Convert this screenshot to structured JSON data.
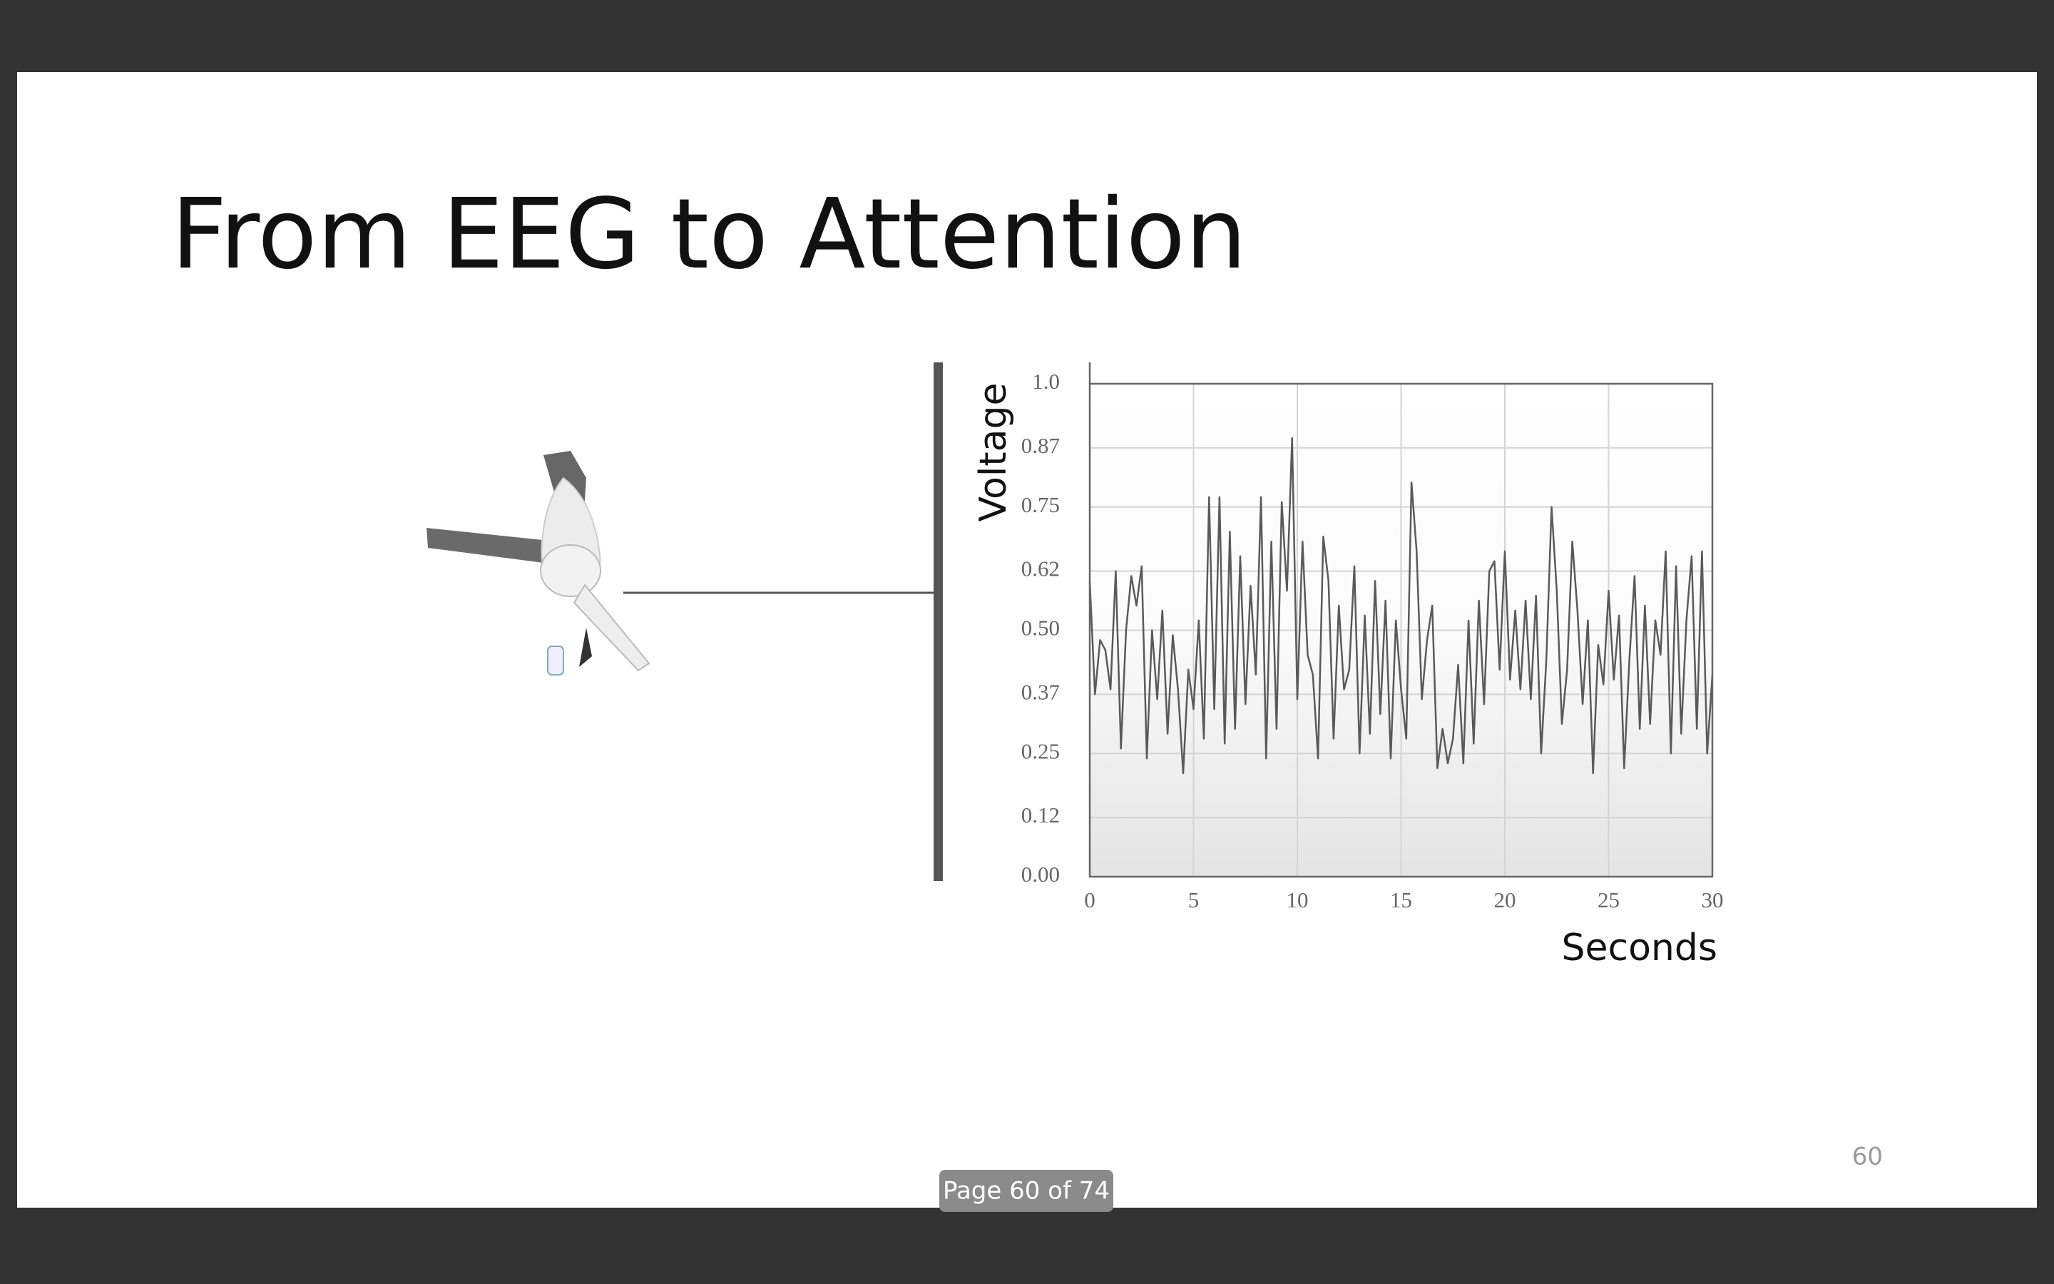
{
  "slide": {
    "title": "From EEG to Attention",
    "page_number": "60"
  },
  "viewer": {
    "page_indicator": "Page 60 of 74"
  },
  "chart_data": {
    "type": "line",
    "x_label": "Seconds",
    "y_label": "Voltage",
    "color": "#5a5a5a",
    "grid": true,
    "xlim": [
      0,
      30
    ],
    "ylim": [
      0,
      1
    ],
    "xticks": [
      0,
      5,
      10,
      15,
      20,
      25,
      30
    ],
    "yticks": [
      {
        "value": 0,
        "label": "0.00"
      },
      0.12,
      0.25,
      0.37,
      {
        "value": 0.5,
        "label": "0.50"
      },
      0.62,
      0.75,
      0.87,
      {
        "value": 1,
        "label": "1.0"
      }
    ],
    "x": [
      0,
      0.25,
      0.5,
      0.75,
      1,
      1.25,
      1.5,
      1.75,
      2,
      2.25,
      2.5,
      2.75,
      3,
      3.25,
      3.5,
      3.75,
      4,
      4.25,
      4.5,
      4.75,
      5,
      5.25,
      5.5,
      5.75,
      6,
      6.25,
      6.5,
      6.75,
      7,
      7.25,
      7.5,
      7.75,
      8,
      8.25,
      8.5,
      8.75,
      9,
      9.25,
      9.5,
      9.75,
      10,
      10.25,
      10.5,
      10.75,
      11,
      11.25,
      11.5,
      11.75,
      12,
      12.25,
      12.5,
      12.75,
      13,
      13.25,
      13.5,
      13.75,
      14,
      14.25,
      14.5,
      14.75,
      15,
      15.25,
      15.5,
      15.75,
      16,
      16.25,
      16.5,
      16.75,
      17,
      17.25,
      17.5,
      17.75,
      18,
      18.25,
      18.5,
      18.75,
      19,
      19.25,
      19.5,
      19.75,
      20,
      20.25,
      20.5,
      20.75,
      21,
      21.25,
      21.5,
      21.75,
      22,
      22.25,
      22.5,
      22.75,
      23,
      23.25,
      23.5,
      23.75,
      24,
      24.25,
      24.5,
      24.75,
      25,
      25.25,
      25.5,
      25.75,
      26,
      26.25,
      26.5,
      26.75,
      27,
      27.25,
      27.5,
      27.75,
      28,
      28.25,
      28.5,
      28.75,
      29,
      29.25,
      29.5,
      29.75,
      30
    ],
    "values": [
      0.6,
      0.37,
      0.48,
      0.46,
      0.38,
      0.62,
      0.26,
      0.5,
      0.61,
      0.55,
      0.63,
      0.24,
      0.5,
      0.36,
      0.54,
      0.29,
      0.49,
      0.38,
      0.21,
      0.42,
      0.34,
      0.52,
      0.28,
      0.77,
      0.34,
      0.77,
      0.27,
      0.7,
      0.3,
      0.65,
      0.35,
      0.59,
      0.41,
      0.77,
      0.24,
      0.68,
      0.3,
      0.76,
      0.58,
      0.89,
      0.36,
      0.68,
      0.45,
      0.41,
      0.24,
      0.69,
      0.6,
      0.28,
      0.55,
      0.38,
      0.42,
      0.63,
      0.25,
      0.53,
      0.29,
      0.6,
      0.33,
      0.56,
      0.24,
      0.52,
      0.38,
      0.28,
      0.8,
      0.66,
      0.36,
      0.48,
      0.55,
      0.22,
      0.3,
      0.23,
      0.28,
      0.43,
      0.23,
      0.52,
      0.27,
      0.56,
      0.35,
      0.62,
      0.64,
      0.42,
      0.66,
      0.4,
      0.54,
      0.38,
      0.56,
      0.36,
      0.57,
      0.25,
      0.44,
      0.75,
      0.58,
      0.31,
      0.42,
      0.68,
      0.54,
      0.35,
      0.52,
      0.21,
      0.47,
      0.39,
      0.58,
      0.4,
      0.53,
      0.22,
      0.44,
      0.61,
      0.3,
      0.55,
      0.31,
      0.52,
      0.45,
      0.66,
      0.25,
      0.63,
      0.29,
      0.52,
      0.65,
      0.3,
      0.66,
      0.25,
      0.41
    ]
  }
}
